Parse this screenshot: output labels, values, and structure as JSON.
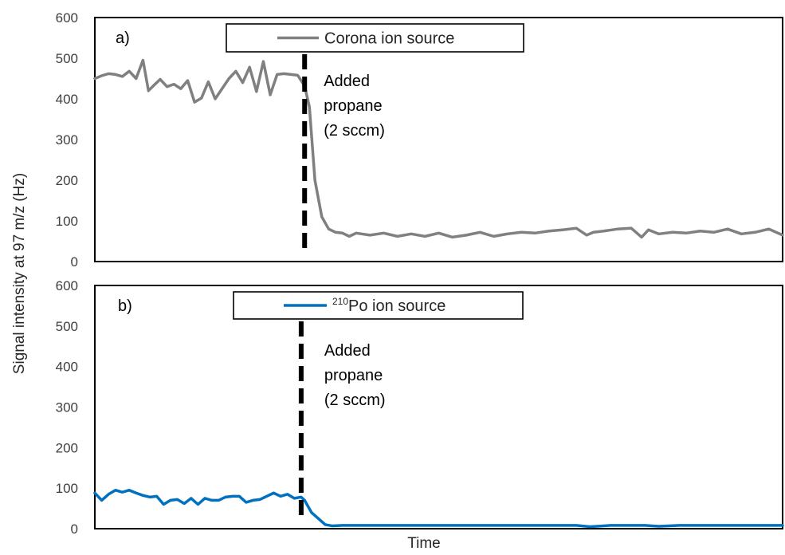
{
  "chart_data": [
    {
      "type": "line",
      "panel_label": "a)",
      "legend_label": "Corona ion source",
      "annotation": {
        "lines": [
          "Added",
          "propane",
          "(2 sccm)"
        ],
        "x": 30.5
      },
      "ylabel": "Signal intensity at 97 m/z (Hz)",
      "xlabel": "Time",
      "ylim": [
        0,
        600
      ],
      "yticks": [
        "0",
        "100",
        "200",
        "300",
        "400",
        "500",
        "600"
      ],
      "xlim": [
        0,
        100
      ],
      "grid": false,
      "color": "#808080",
      "series": [
        {
          "x": [
            0,
            1,
            2,
            3,
            4,
            5,
            6,
            7,
            7.8,
            8.5,
            9.5,
            10.5,
            11.5,
            12.5,
            13.5,
            14.5,
            15.5,
            16.5,
            17.5,
            18.5,
            19.5,
            20.5,
            21.5,
            22.5,
            23.5,
            24.5,
            25.5,
            26.5,
            27.5,
            28.5,
            29.5,
            30.5,
            31.2,
            32,
            33,
            34,
            35,
            36,
            37,
            38,
            40,
            42,
            44,
            46,
            48,
            50,
            52,
            54,
            56,
            58,
            60,
            62,
            64,
            66,
            68,
            70,
            71.5,
            72.5,
            74,
            76,
            78,
            79.5,
            80.5,
            82,
            84,
            86,
            88,
            90,
            92,
            94,
            96,
            98,
            100
          ],
          "y": [
            450,
            457,
            462,
            460,
            455,
            468,
            450,
            495,
            420,
            432,
            448,
            430,
            436,
            425,
            445,
            392,
            402,
            442,
            400,
            425,
            450,
            468,
            440,
            478,
            418,
            492,
            410,
            460,
            462,
            460,
            458,
            432,
            380,
            200,
            110,
            80,
            72,
            70,
            62,
            70,
            65,
            70,
            62,
            68,
            62,
            70,
            60,
            65,
            72,
            62,
            68,
            72,
            70,
            75,
            78,
            82,
            65,
            72,
            75,
            80,
            82,
            60,
            78,
            68,
            72,
            70,
            75,
            72,
            80,
            68,
            72,
            80,
            65
          ]
        }
      ]
    },
    {
      "type": "line",
      "panel_label": "b)",
      "legend_label": "Po ion source",
      "legend_sup": "210",
      "annotation": {
        "lines": [
          "Added",
          "propane",
          "(2 sccm)"
        ],
        "x": 30
      },
      "ylim": [
        0,
        600
      ],
      "yticks": [
        "0",
        "100",
        "200",
        "300",
        "400",
        "500",
        "600"
      ],
      "xlim": [
        0,
        100
      ],
      "grid": false,
      "color": "#0070C0",
      "series": [
        {
          "x": [
            0,
            1,
            2,
            3,
            4,
            5,
            6,
            7,
            8,
            9,
            10,
            11,
            12,
            13,
            14,
            15,
            16,
            17,
            18,
            19,
            20,
            21,
            22,
            23,
            24,
            25,
            26,
            27,
            28,
            29,
            30,
            30.5,
            31.5,
            32.5,
            33.5,
            34.5,
            36,
            38,
            40,
            45,
            50,
            55,
            60,
            65,
            70,
            72,
            75,
            80,
            82,
            85,
            90,
            95,
            100
          ],
          "y": [
            88,
            70,
            85,
            95,
            90,
            95,
            88,
            82,
            78,
            80,
            60,
            70,
            72,
            62,
            75,
            60,
            75,
            70,
            70,
            78,
            80,
            80,
            65,
            70,
            72,
            80,
            88,
            80,
            85,
            75,
            78,
            70,
            40,
            25,
            10,
            7,
            8,
            8,
            8,
            8,
            8,
            8,
            8,
            8,
            8,
            5,
            8,
            8,
            6,
            8,
            8,
            8,
            8
          ]
        }
      ]
    }
  ]
}
